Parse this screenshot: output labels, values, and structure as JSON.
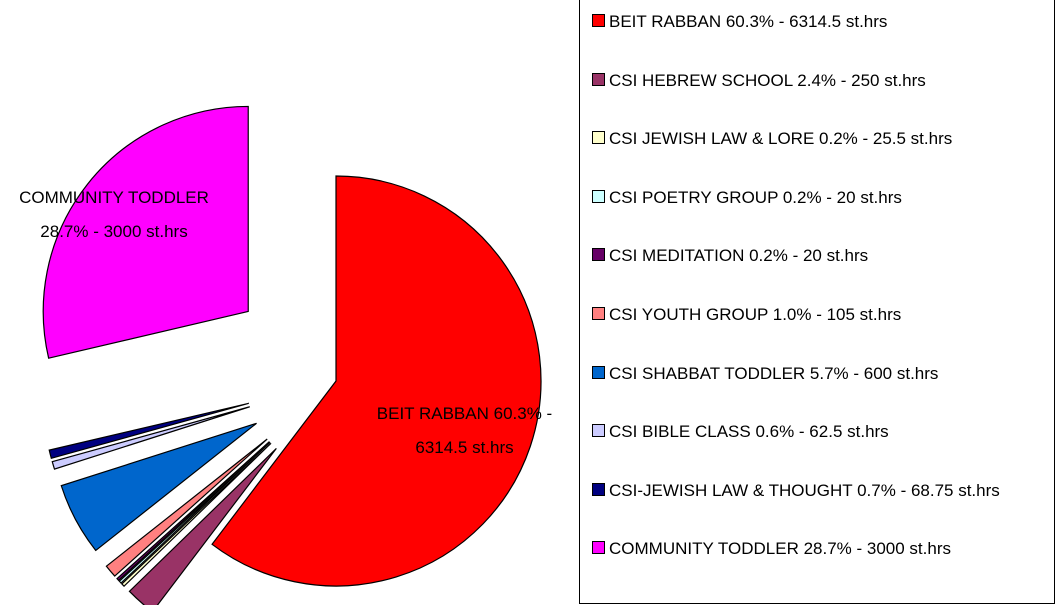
{
  "chart_data": {
    "type": "pie",
    "categories": [
      "BEIT RABBAN 60.3% - 6314.5 st.hrs",
      "CSI HEBREW SCHOOL 2.4% - 250 st.hrs",
      "CSI JEWISH LAW & LORE  0.2% - 25.5 st.hrs",
      "CSI POETRY GROUP 0.2% - 20 st.hrs",
      "CSI MEDITATION 0.2% - 20 st.hrs",
      "CSI YOUTH GROUP 1.0% - 105 st.hrs",
      "CSI SHABBAT TODDLER  5.7% - 600 st.hrs",
      "CSI BIBLE CLASS  0.6% - 62.5 st.hrs",
      "CSI-JEWISH LAW & THOUGHT 0.7% - 68.75 st.hrs",
      "COMMUNITY TODDLER 28.7% - 3000 st.hrs"
    ],
    "values": [
      6314.5,
      250,
      25.5,
      20,
      20,
      105,
      600,
      62.5,
      68.75,
      3000
    ],
    "colors": [
      "#ff0000",
      "#993366",
      "#ffffcc",
      "#ccffff",
      "#660066",
      "#ff8080",
      "#0066cc",
      "#ccccff",
      "#000080",
      "#ff00ff"
    ],
    "legend": "right"
  }
}
